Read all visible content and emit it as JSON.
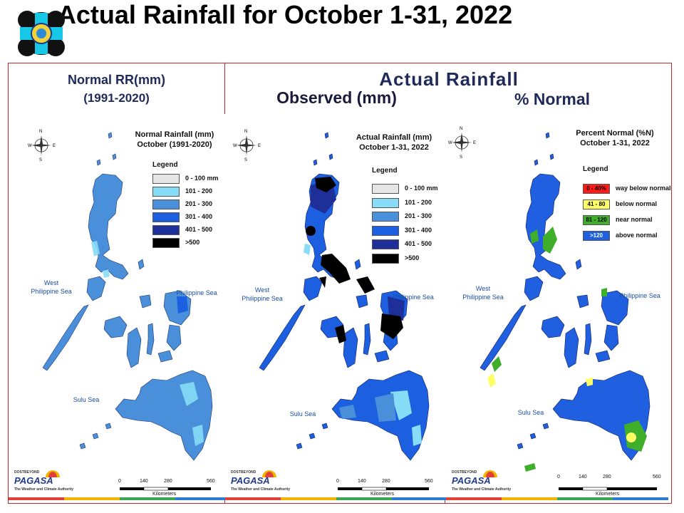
{
  "slide_title": "Actual Rainfall for October 1-31, 2022",
  "left_header": {
    "line1": "Normal RR(mm)",
    "line2": "(1991-2020)"
  },
  "right_header": {
    "title": "Actual Rainfall",
    "observed": "Observed (mm)",
    "percent": "% Normal"
  },
  "compass": {
    "n": "N",
    "s": "S",
    "e": "E",
    "w": "W"
  },
  "panels": [
    {
      "title_line1": "Normal Rainfall (mm)",
      "title_line2": "October (1991-2020)",
      "legend_title": "Legend",
      "legend": [
        {
          "label": "0 - 100 mm",
          "color": "#e6e6e6"
        },
        {
          "label": "101 - 200",
          "color": "#87ddf7"
        },
        {
          "label": "201 - 300",
          "color": "#4a8fd9"
        },
        {
          "label": "301 - 400",
          "color": "#1c5fe0"
        },
        {
          "label": "401 - 500",
          "color": "#1e2f9a"
        },
        {
          "label": ">500",
          "color": "#000000"
        }
      ],
      "seas": {
        "west_line1": "West",
        "west_line2": "Philippine Sea",
        "east": "Philippine Sea",
        "sulu": "Sulu Sea"
      }
    },
    {
      "title_line1": "Actual Rainfall (mm)",
      "title_line2": "October 1-31, 2022",
      "legend_title": "Legend",
      "legend": [
        {
          "label": "0 - 100 mm",
          "color": "#e6e6e6"
        },
        {
          "label": "101 - 200",
          "color": "#87ddf7"
        },
        {
          "label": "201 - 300",
          "color": "#4a8fd9"
        },
        {
          "label": "301 - 400",
          "color": "#1c5fe0"
        },
        {
          "label": "401 - 500",
          "color": "#1e2f9a"
        },
        {
          "label": ">500",
          "color": "#000000"
        }
      ],
      "seas": {
        "west_line1": "West",
        "west_line2": "Philippine Sea",
        "east": "Philippine Sea",
        "sulu": "Sulu Sea"
      }
    },
    {
      "title_line1": "Percent Normal (%N)",
      "title_line2": "October 1-31, 2022",
      "legend_title": "Legend",
      "legend": [
        {
          "range": "0 - 40%",
          "label": "way below normal",
          "color": "#ff1a1a"
        },
        {
          "range": "41 - 80",
          "label": "below normal",
          "color": "#ffff66"
        },
        {
          "range": "81 - 120",
          "label": "near normal",
          "color": "#3fae2a"
        },
        {
          "range": ">120",
          "label": "above normal",
          "color": "#1f5fe0"
        }
      ],
      "seas": {
        "west_line1": "West",
        "west_line2": "Philippine Sea",
        "east": "Philippine Sea",
        "sulu": "Sulu Sea"
      }
    }
  ],
  "scale": {
    "ticks": [
      "0",
      "140",
      "280",
      "560"
    ],
    "unit": "Kilometers"
  },
  "branding": {
    "dost": "DOST",
    "beyond": "BEYOND",
    "name": "PAGASA",
    "tagline": "The Weather and Climate Authority"
  },
  "strip_colors": [
    "#e0413a",
    "#f4b400",
    "#3aa655",
    "#2e7bd6"
  ]
}
